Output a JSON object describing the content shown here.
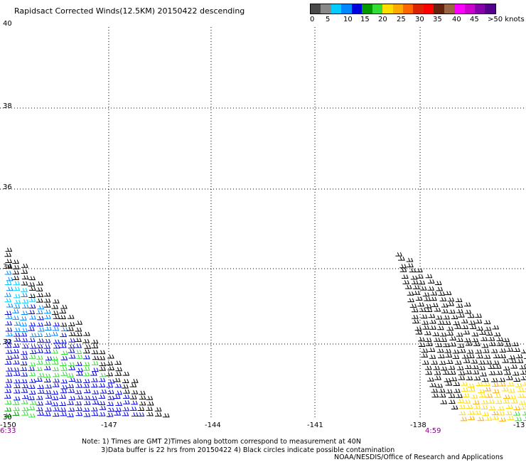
{
  "title": "Rapidsact Corrected Winds(12.5KM) 20150422 descending",
  "legend": {
    "colors": [
      "#4a4a4a",
      "#888888",
      "#00ccff",
      "#0088ff",
      "#0000dd",
      "#009900",
      "#33dd33",
      "#ffdd00",
      "#ffaa00",
      "#ff6600",
      "#dd2200",
      "#ff0000",
      "#662211",
      "#996644",
      "#ff00ff",
      "#cc00cc",
      "#8800aa",
      "#550088"
    ],
    "labels": [
      "0",
      "5",
      "10",
      "15",
      "20",
      "25",
      "30",
      "35",
      "40",
      "45",
      ">50 knots"
    ]
  },
  "axes": {
    "lat_labels": [
      "40",
      "38",
      "36",
      "34",
      "32",
      "30"
    ],
    "lon_labels": [
      "-150",
      "-147",
      "-144",
      "-141",
      "-138",
      "-13"
    ],
    "times": [
      "6:33",
      "4:59"
    ]
  },
  "notes": [
    "Note: 1) Times are GMT 2)Times along bottom correspond to measurement at 40N",
    "         3)Data buffer is 22 hrs from 20150422 4) Black circles indicate possible contamination"
  ],
  "credit": "NOAA/NESDIS/Office of Research and Applications",
  "wind_swaths": [
    {
      "region": "west",
      "colors": [
        "#000000",
        "#0088ff",
        "#00ccff",
        "#0000dd",
        "#33dd33",
        "#009900"
      ]
    },
    {
      "region": "east",
      "colors": [
        "#000000",
        "#ffdd00",
        "#ffaa00",
        "#33dd33"
      ]
    }
  ]
}
